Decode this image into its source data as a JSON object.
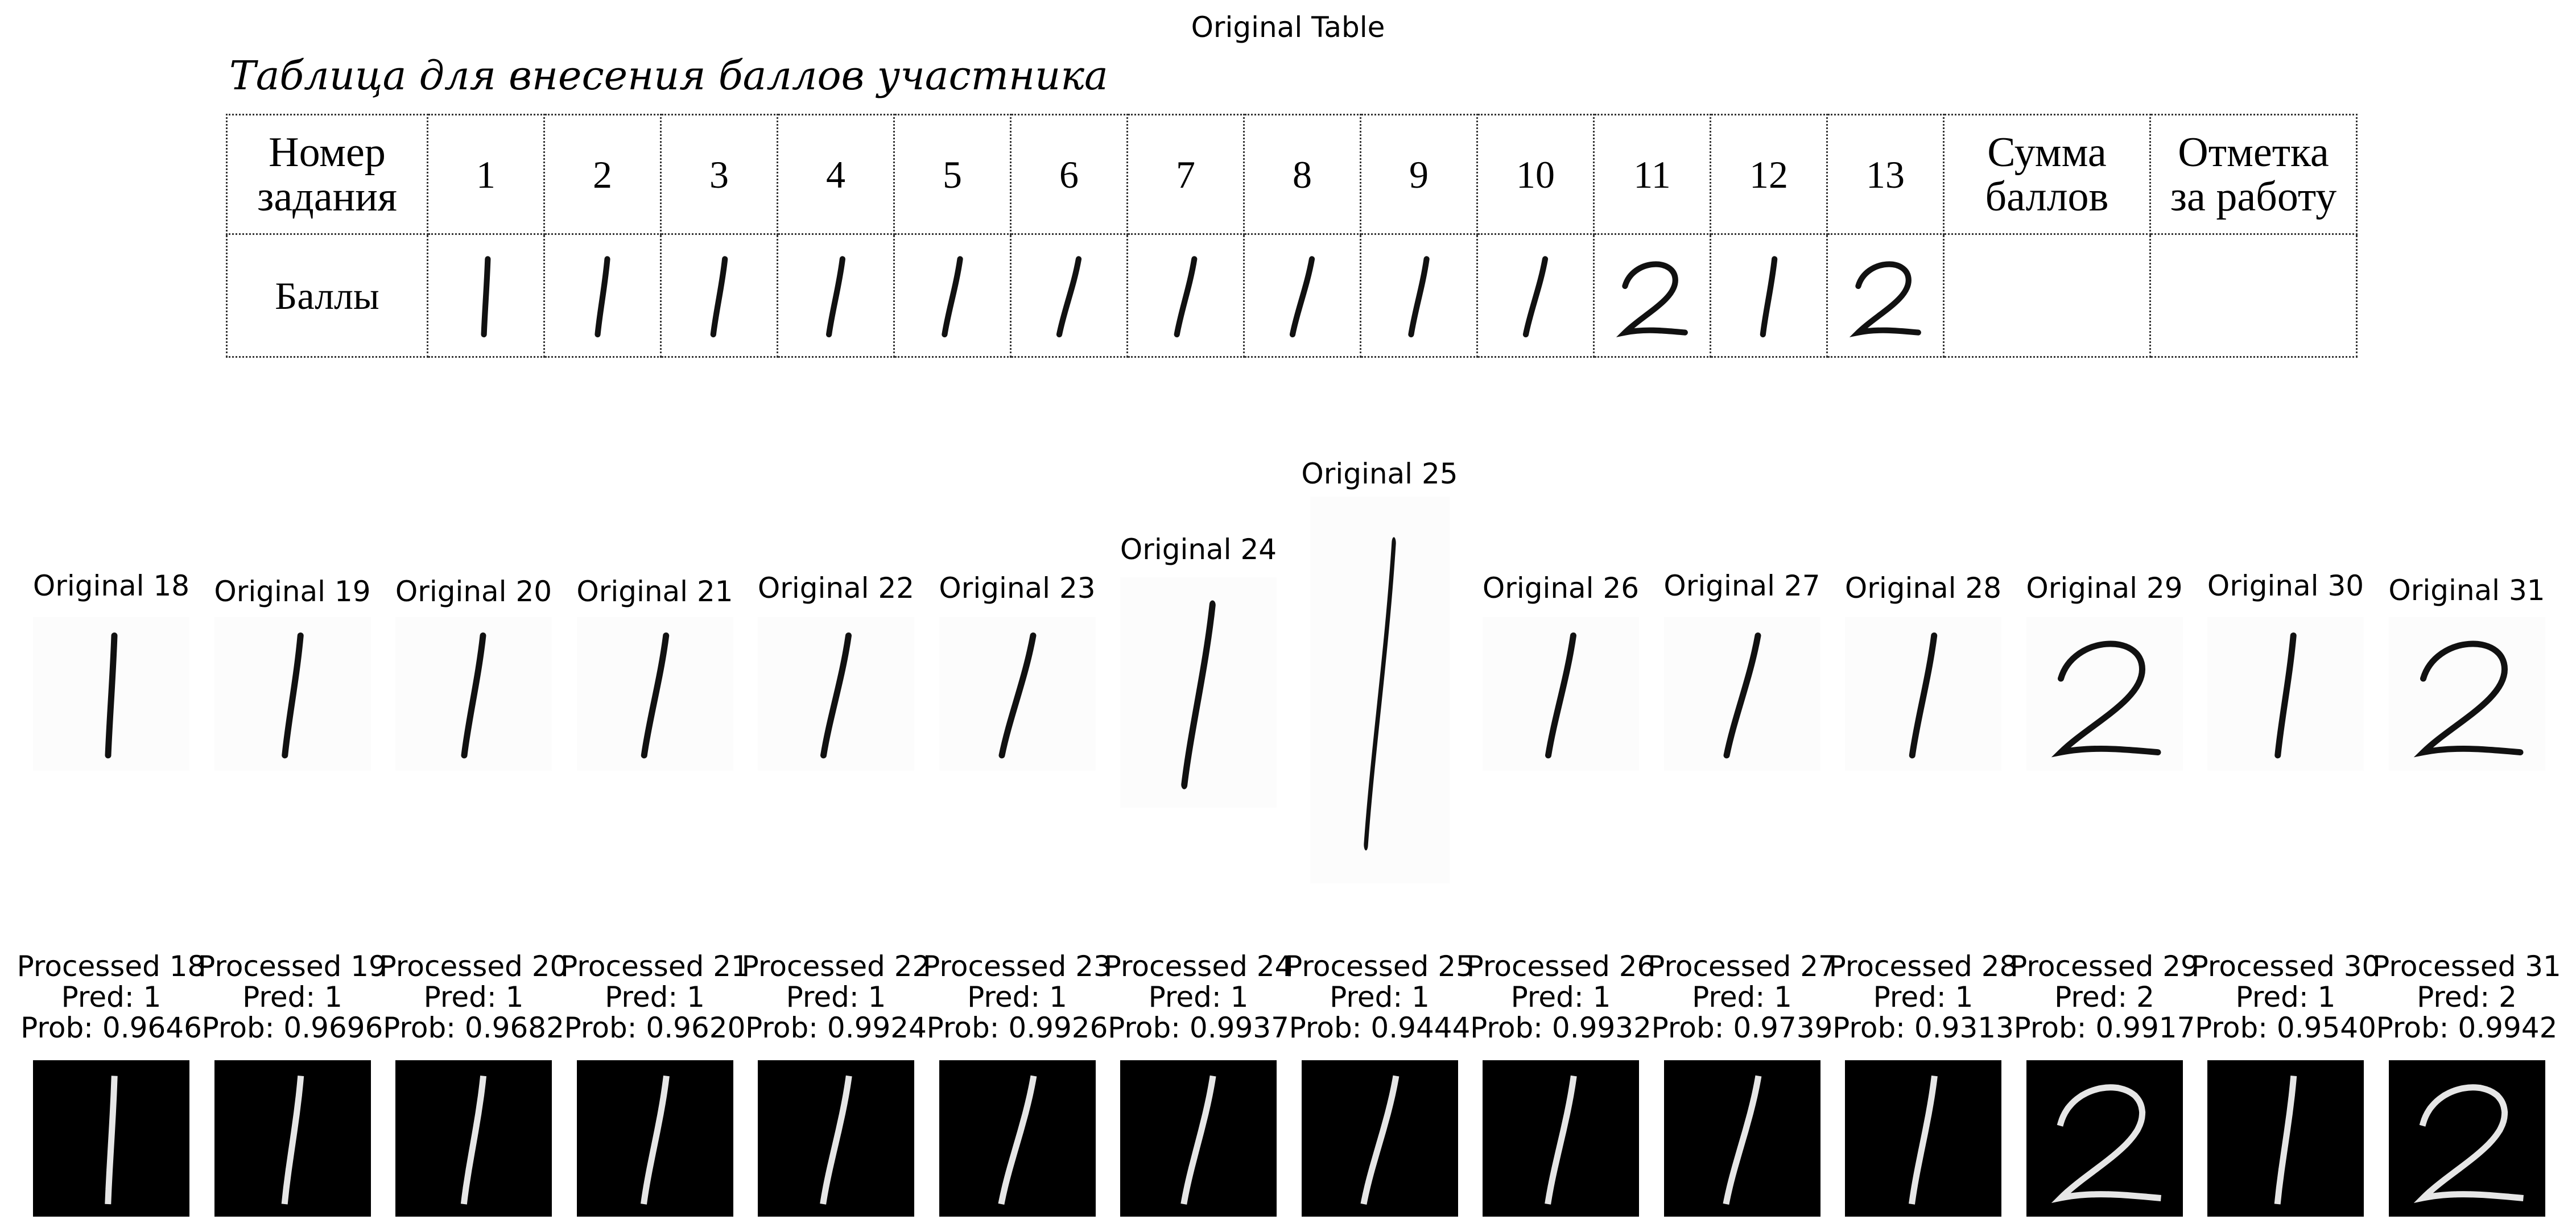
{
  "figure_title": "Original Table",
  "scan": {
    "caption": "Таблица для внесения баллов участника",
    "row1_header": [
      "Номер",
      "задания"
    ],
    "task_numbers": [
      "1",
      "2",
      "3",
      "4",
      "5",
      "6",
      "7",
      "8",
      "9",
      "10",
      "11",
      "12",
      "13"
    ],
    "sum_header": [
      "Сумма",
      "баллов"
    ],
    "mark_header": [
      "Отметка",
      "за работу"
    ],
    "row2_header": "Баллы",
    "handwritten_scores": [
      "1",
      "1",
      "1",
      "1",
      "1",
      "1",
      "1",
      "1",
      "1",
      "1",
      "2",
      "1",
      "2"
    ]
  },
  "originals": [
    {
      "label": "Original 18",
      "digit": "1"
    },
    {
      "label": "Original 19",
      "digit": "1"
    },
    {
      "label": "Original 20",
      "digit": "1"
    },
    {
      "label": "Original 21",
      "digit": "1"
    },
    {
      "label": "Original 22",
      "digit": "1"
    },
    {
      "label": "Original 23",
      "digit": "1"
    },
    {
      "label": "Original 24",
      "digit": "1"
    },
    {
      "label": "Original 25",
      "digit": "1"
    },
    {
      "label": "Original 26",
      "digit": "1"
    },
    {
      "label": "Original 27",
      "digit": "1"
    },
    {
      "label": "Original 28",
      "digit": "1"
    },
    {
      "label": "Original 29",
      "digit": "2"
    },
    {
      "label": "Original 30",
      "digit": "1"
    },
    {
      "label": "Original 31",
      "digit": "2"
    }
  ],
  "processed": [
    {
      "label": "Processed 18",
      "pred": "Pred: 1",
      "prob": "Prob: 0.9646"
    },
    {
      "label": "Processed 19",
      "pred": "Pred: 1",
      "prob": "Prob: 0.9696"
    },
    {
      "label": "Processed 20",
      "pred": "Pred: 1",
      "prob": "Prob: 0.9682"
    },
    {
      "label": "Processed 21",
      "pred": "Pred: 1",
      "prob": "Prob: 0.9620"
    },
    {
      "label": "Processed 22",
      "pred": "Pred: 1",
      "prob": "Prob: 0.9924"
    },
    {
      "label": "Processed 23",
      "pred": "Pred: 1",
      "prob": "Prob: 0.9926"
    },
    {
      "label": "Processed 24",
      "pred": "Pred: 1",
      "prob": "Prob: 0.9937"
    },
    {
      "label": "Processed 25",
      "pred": "Pred: 1",
      "prob": "Prob: 0.9444"
    },
    {
      "label": "Processed 26",
      "pred": "Pred: 1",
      "prob": "Prob: 0.9932"
    },
    {
      "label": "Processed 27",
      "pred": "Pred: 1",
      "prob": "Prob: 0.9739"
    },
    {
      "label": "Processed 28",
      "pred": "Pred: 1",
      "prob": "Prob: 0.9313"
    },
    {
      "label": "Processed 29",
      "pred": "Pred: 2",
      "prob": "Prob: 0.9917"
    },
    {
      "label": "Processed 30",
      "pred": "Pred: 1",
      "prob": "Prob: 0.9540"
    },
    {
      "label": "Processed 31",
      "pred": "Pred: 2",
      "prob": "Prob: 0.9942"
    }
  ]
}
